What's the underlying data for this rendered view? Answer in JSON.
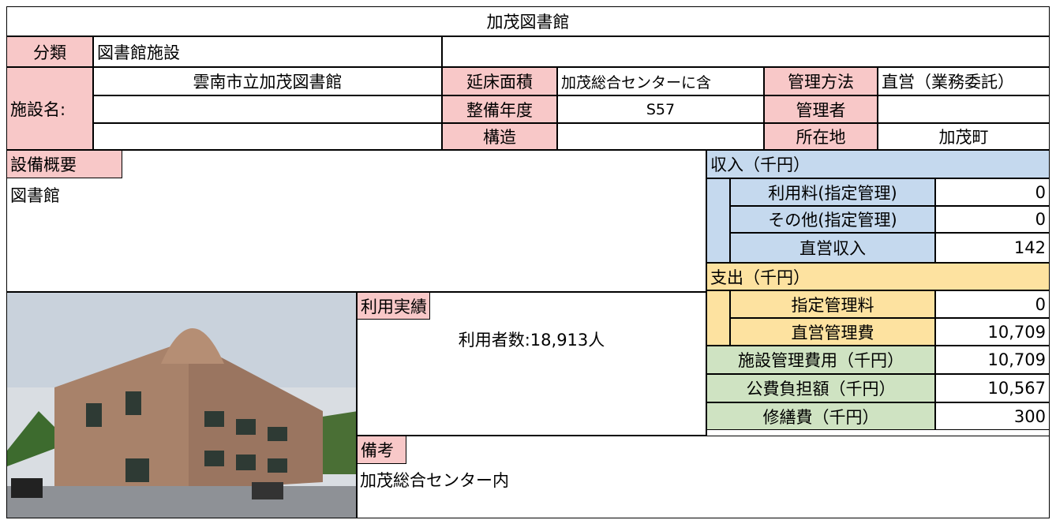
{
  "title": "加茂図書館",
  "classification": {
    "label": "分類",
    "value": "図書館施設"
  },
  "facility": {
    "label": "施設名:",
    "name": "雲南市立加茂図書館"
  },
  "details": [
    {
      "label": "延床面積",
      "value": "加茂総合センターに含"
    },
    {
      "label": "整備年度",
      "value": "S57"
    },
    {
      "label": "構造"
    }
  ],
  "management": [
    {
      "label": "管理方法",
      "value": "直営（業務委託）"
    },
    {
      "label": "管理者"
    },
    {
      "label": "所在地",
      "value": "加茂町"
    }
  ],
  "equipment": {
    "label": "設備概要",
    "text": "図書館"
  },
  "income": {
    "header": "収入（千円）",
    "rows": [
      {
        "label": "利用料(指定管理)",
        "value": "0"
      },
      {
        "label": "その他(指定管理)",
        "value": "0"
      },
      {
        "label": "直営収入",
        "value": "142"
      }
    ]
  },
  "expense": {
    "header": "支出（千円）",
    "rows": [
      {
        "label": "指定管理料",
        "value": "0"
      },
      {
        "label": "直営管理費",
        "value": "10,709"
      }
    ]
  },
  "totals": [
    {
      "label": "施設管理費用（千円）",
      "value": "10,709"
    },
    {
      "label": "公費負担額（千円）",
      "value": "10,567"
    },
    {
      "label": "修繕費（千円）",
      "value": "300"
    }
  ],
  "usage": {
    "label": "利用実績",
    "text": "利用者数:18,913人"
  },
  "remarks": {
    "label": "備考",
    "text": "加茂総合センター内"
  }
}
